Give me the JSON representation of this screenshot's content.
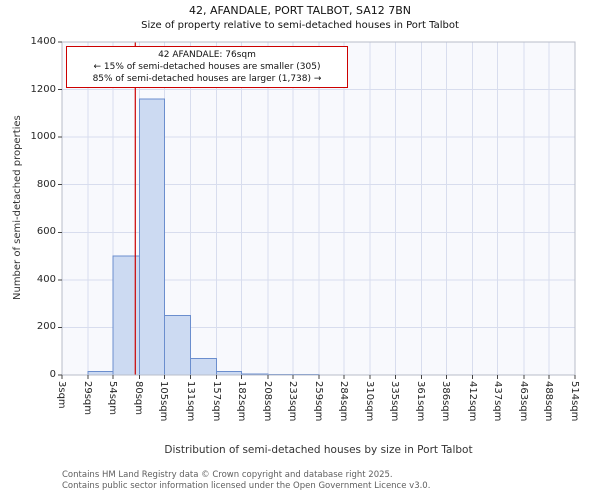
{
  "title": "42, AFANDALE, PORT TALBOT, SA12 7BN",
  "subtitle": "Size of property relative to semi-detached houses in Port Talbot",
  "annotation": {
    "line1": "42 AFANDALE: 76sqm",
    "line2": "← 15% of semi-detached houses are smaller (305)",
    "line3": "85% of semi-detached houses are larger (1,738) →"
  },
  "footer": {
    "line1": "Contains HM Land Registry data © Crown copyright and database right 2025.",
    "line2": "Contains public sector information licensed under the Open Government Licence v3.0."
  },
  "chart_data": {
    "type": "bar",
    "title": "42, AFANDALE, PORT TALBOT, SA12 7BN — Size of property relative to semi-detached houses in Port Talbot",
    "xlabel": "Distribution of semi-detached houses by size in Port Talbot",
    "ylabel": "Number of semi-detached properties",
    "bin_edges_sqm": [
      3,
      29,
      54,
      80,
      105,
      131,
      157,
      182,
      208,
      233,
      259,
      284,
      310,
      335,
      361,
      386,
      412,
      437,
      463,
      488,
      514
    ],
    "tick_labels": [
      "3sqm",
      "29sqm",
      "54sqm",
      "80sqm",
      "105sqm",
      "131sqm",
      "157sqm",
      "182sqm",
      "208sqm",
      "233sqm",
      "259sqm",
      "284sqm",
      "310sqm",
      "335sqm",
      "361sqm",
      "386sqm",
      "412sqm",
      "437sqm",
      "463sqm",
      "488sqm",
      "514sqm"
    ],
    "values": [
      0,
      15,
      500,
      1160,
      250,
      70,
      15,
      5,
      3,
      3,
      0,
      0,
      0,
      0,
      0,
      0,
      0,
      0,
      0,
      0
    ],
    "ylim": [
      0,
      1400
    ],
    "yticks": [
      0,
      200,
      400,
      600,
      800,
      1000,
      1200,
      1400
    ],
    "marker_value_sqm": 76,
    "marker_label": "42 AFANDALE: 76sqm",
    "smaller_count": 305,
    "smaller_pct": 15,
    "larger_count": 1738,
    "larger_pct": 85,
    "legend_position": "none",
    "grid": true,
    "colors": {
      "bar_fill": "#ccdaf2",
      "bar_edge": "#6b8ece",
      "marker_line": "#cc0000",
      "grid": "#d8ddee",
      "plot_bg": "#f8f9fd",
      "plot_border": "#b9bdc9"
    }
  }
}
